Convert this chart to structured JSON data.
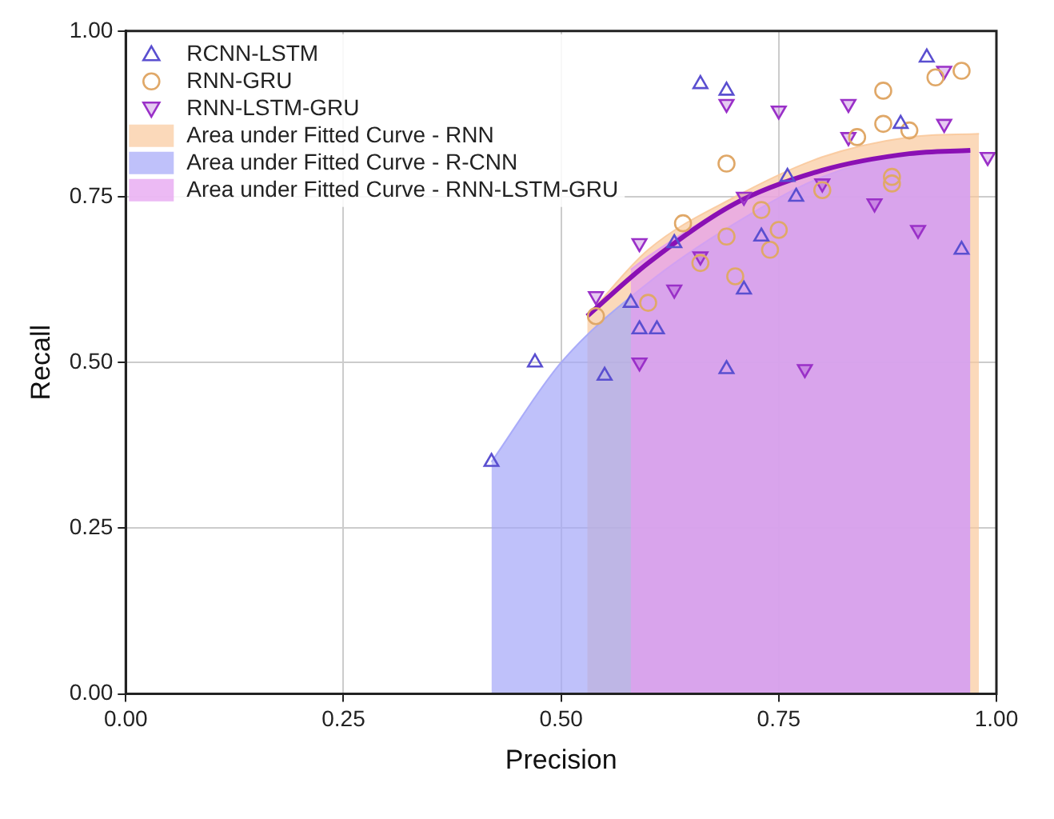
{
  "chart_data": {
    "type": "scatter",
    "xlabel": "Precision",
    "ylabel": "Recall",
    "xlim": [
      0,
      1
    ],
    "ylim": [
      0,
      1
    ],
    "xticks": [
      {
        "value": 0,
        "label": "0.00"
      },
      {
        "value": 0.25,
        "label": "0.25"
      },
      {
        "value": 0.5,
        "label": "0.50"
      },
      {
        "value": 0.75,
        "label": "0.75"
      },
      {
        "value": 1,
        "label": "1.00"
      }
    ],
    "yticks": [
      {
        "value": 0,
        "label": "0.00"
      },
      {
        "value": 0.25,
        "label": "0.25"
      },
      {
        "value": 0.5,
        "label": "0.50"
      },
      {
        "value": 0.75,
        "label": "0.75"
      },
      {
        "value": 1,
        "label": "1.00"
      }
    ],
    "grid": true,
    "legend": "top left",
    "series": [
      {
        "name": "RCNN-LSTM",
        "marker": "triangle",
        "color": "#5a4fd0",
        "x": [
          0.42,
          0.47,
          0.55,
          0.58,
          0.59,
          0.61,
          0.63,
          0.66,
          0.69,
          0.69,
          0.71,
          0.73,
          0.76,
          0.77,
          0.89,
          0.92,
          0.96
        ],
        "values": [
          0.35,
          0.5,
          0.48,
          0.59,
          0.55,
          0.55,
          0.68,
          0.92,
          0.91,
          0.49,
          0.61,
          0.69,
          0.78,
          0.75,
          0.86,
          0.96,
          0.67
        ]
      },
      {
        "name": "RNN-GRU",
        "marker": "circle",
        "color": "#e0a868",
        "x": [
          0.54,
          0.6,
          0.64,
          0.66,
          0.69,
          0.69,
          0.7,
          0.73,
          0.74,
          0.75,
          0.8,
          0.84,
          0.87,
          0.87,
          0.88,
          0.88,
          0.9,
          0.93,
          0.96
        ],
        "values": [
          0.57,
          0.59,
          0.71,
          0.65,
          0.8,
          0.69,
          0.63,
          0.73,
          0.67,
          0.7,
          0.76,
          0.84,
          0.91,
          0.86,
          0.78,
          0.77,
          0.85,
          0.93,
          0.94
        ]
      },
      {
        "name": "RNN-LSTM-GRU",
        "marker": "triangle-down",
        "color": "#9a30c8",
        "x": [
          0.54,
          0.59,
          0.59,
          0.63,
          0.66,
          0.69,
          0.71,
          0.75,
          0.78,
          0.8,
          0.83,
          0.83,
          0.86,
          0.91,
          0.94,
          0.94,
          0.99
        ],
        "values": [
          0.6,
          0.68,
          0.5,
          0.61,
          0.66,
          0.89,
          0.75,
          0.88,
          0.49,
          0.77,
          0.89,
          0.84,
          0.74,
          0.7,
          0.94,
          0.86,
          0.81
        ]
      },
      {
        "name": "Area under Fitted Curve - RNN",
        "type": "area",
        "color": "#f9c99c",
        "x": [
          0.53,
          0.6,
          0.7,
          0.8,
          0.9,
          0.98
        ],
        "values": [
          0.57,
          0.67,
          0.75,
          0.81,
          0.84,
          0.845
        ]
      },
      {
        "name": "Area under Fitted Curve - R-CNN",
        "type": "area",
        "color": "#a4a6f8",
        "x": [
          0.42,
          0.5,
          0.6,
          0.7,
          0.8,
          0.9,
          0.97
        ],
        "values": [
          0.35,
          0.5,
          0.62,
          0.71,
          0.78,
          0.815,
          0.82
        ]
      },
      {
        "name": "Area under Fitted Curve - RNN-LSTM-GRU",
        "type": "area",
        "color": "#e49cf0",
        "x": [
          0.58,
          0.6,
          0.7,
          0.8,
          0.9,
          0.97
        ],
        "values": [
          0.64,
          0.66,
          0.74,
          0.79,
          0.815,
          0.82
        ]
      },
      {
        "type": "line",
        "color": "#8a10b4",
        "x": [
          0.53,
          0.6,
          0.7,
          0.8,
          0.9,
          0.97
        ],
        "values": [
          0.57,
          0.65,
          0.74,
          0.79,
          0.815,
          0.82
        ]
      }
    ]
  }
}
